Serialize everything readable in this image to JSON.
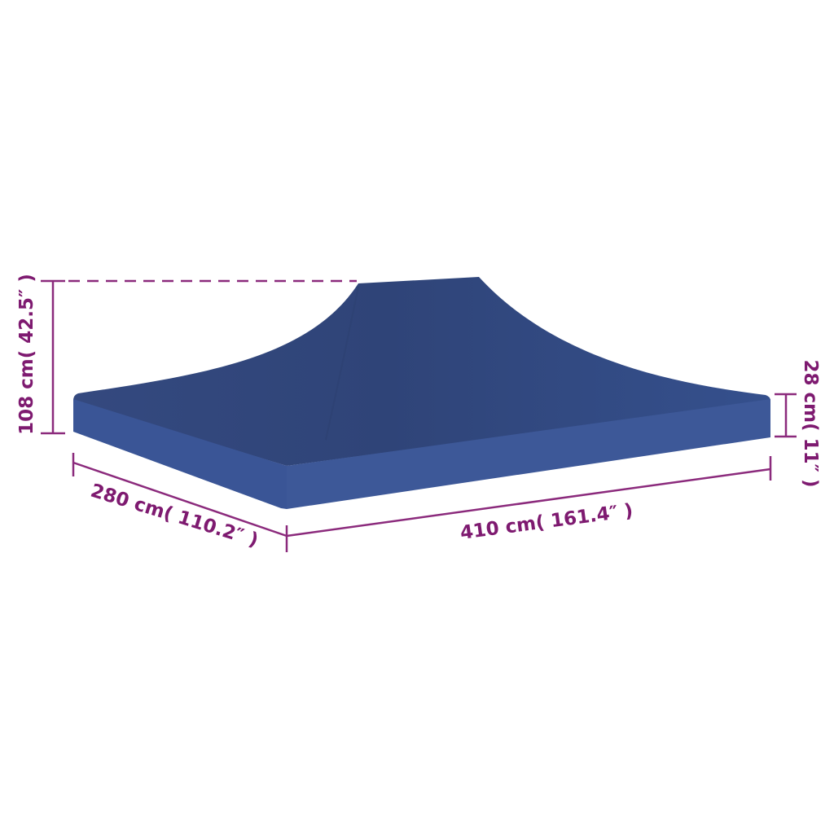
{
  "colors": {
    "canopy_top": "#32477d",
    "canopy_side": "#3a5596",
    "dimension": "#7e1a70"
  },
  "dimensions": {
    "total_height": "108 cm( 42.5″ )",
    "depth": "280 cm( 110.2″ )",
    "width": "410 cm( 161.4″ )",
    "edge_height": "28 cm( 11″ )"
  }
}
